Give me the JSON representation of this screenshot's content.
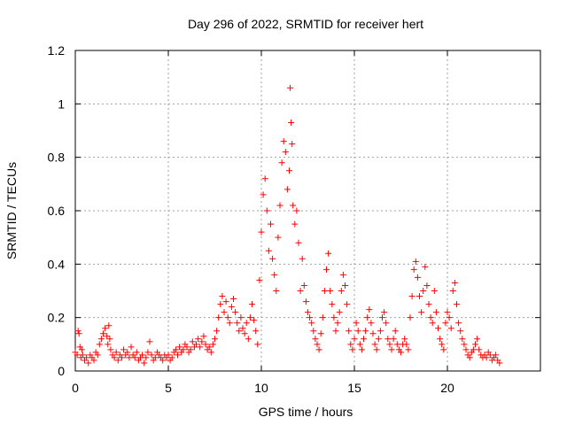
{
  "chart_data": {
    "type": "scatter",
    "title": "Day 296 of 2022, SRMTID for receiver hert",
    "xlabel": "GPS time / hours",
    "ylabel": "SRMTID / TECUs",
    "xlim": [
      0,
      25
    ],
    "ylim": [
      0,
      1.2
    ],
    "xticks": [
      0,
      5,
      10,
      15,
      20
    ],
    "xtick_labels": [
      "0",
      "5",
      "10",
      "15",
      "20"
    ],
    "yticks": [
      0,
      0.2,
      0.4,
      0.6,
      0.8,
      1.0,
      1.2
    ],
    "ytick_labels": [
      "0",
      "0.2",
      "0.4",
      "0.6",
      "0.8",
      "1",
      "1.2"
    ],
    "grid": true,
    "marker": "+",
    "marker_color": "#ff0000",
    "series": [
      {
        "name": "SRMTID",
        "x": [
          0.0,
          0.1,
          0.15,
          0.2,
          0.25,
          0.3,
          0.35,
          0.4,
          0.5,
          0.6,
          0.7,
          0.8,
          0.9,
          1.0,
          1.1,
          1.2,
          1.3,
          1.4,
          1.5,
          1.6,
          1.7,
          1.75,
          1.8,
          1.85,
          1.9,
          2.0,
          2.1,
          2.2,
          2.3,
          2.4,
          2.5,
          2.6,
          2.7,
          2.8,
          2.9,
          3.0,
          3.1,
          3.2,
          3.3,
          3.4,
          3.5,
          3.6,
          3.7,
          3.8,
          3.9,
          4.0,
          4.1,
          4.2,
          4.3,
          4.4,
          4.5,
          4.6,
          4.7,
          4.8,
          4.9,
          5.0,
          5.1,
          5.2,
          5.3,
          5.4,
          5.5,
          5.6,
          5.7,
          5.8,
          5.9,
          6.0,
          6.1,
          6.2,
          6.3,
          6.4,
          6.5,
          6.6,
          6.7,
          6.8,
          6.9,
          7.0,
          7.1,
          7.2,
          7.3,
          7.4,
          7.5,
          7.6,
          7.7,
          7.8,
          7.9,
          8.0,
          8.1,
          8.2,
          8.3,
          8.4,
          8.5,
          8.6,
          8.7,
          8.8,
          8.9,
          9.0,
          9.1,
          9.2,
          9.3,
          9.4,
          9.5,
          9.6,
          9.7,
          9.8,
          9.9,
          10.0,
          10.1,
          10.2,
          10.3,
          10.4,
          10.5,
          10.6,
          10.7,
          10.8,
          10.9,
          11.0,
          11.1,
          11.2,
          11.3,
          11.4,
          11.5,
          11.55,
          11.6,
          11.65,
          11.7,
          11.8,
          11.9,
          12.0,
          12.1,
          12.2,
          12.3,
          12.4,
          12.5,
          12.6,
          12.7,
          12.8,
          12.9,
          13.0,
          13.1,
          13.2,
          13.3,
          13.4,
          13.5,
          13.6,
          13.7,
          13.8,
          13.9,
          14.0,
          14.1,
          14.2,
          14.3,
          14.4,
          14.5,
          14.6,
          14.7,
          14.8,
          14.9,
          15.0,
          15.1,
          15.2,
          15.3,
          15.4,
          15.5,
          15.6,
          15.7,
          15.8,
          15.9,
          16.0,
          16.1,
          16.2,
          16.3,
          16.4,
          16.5,
          16.6,
          16.7,
          16.8,
          16.9,
          17.0,
          17.1,
          17.2,
          17.3,
          17.4,
          17.5,
          17.6,
          17.7,
          17.8,
          17.9,
          18.0,
          18.1,
          18.2,
          18.3,
          18.4,
          18.5,
          18.6,
          18.7,
          18.8,
          18.9,
          19.0,
          19.1,
          19.2,
          19.3,
          19.4,
          19.5,
          19.6,
          19.7,
          19.8,
          19.9,
          20.0,
          20.1,
          20.2,
          20.3,
          20.4,
          20.5,
          20.6,
          20.7,
          20.8,
          20.9,
          21.0,
          21.1,
          21.2,
          21.3,
          21.4,
          21.5,
          21.6,
          21.7,
          21.8,
          21.9,
          22.0,
          22.1,
          22.2,
          22.3,
          22.4,
          22.5,
          22.6,
          22.7,
          22.8
        ],
        "y": [
          0.07,
          0.06,
          0.15,
          0.14,
          0.09,
          0.05,
          0.08,
          0.06,
          0.04,
          0.05,
          0.03,
          0.06,
          0.05,
          0.04,
          0.07,
          0.06,
          0.1,
          0.12,
          0.14,
          0.16,
          0.13,
          0.1,
          0.17,
          0.12,
          0.08,
          0.06,
          0.05,
          0.07,
          0.04,
          0.06,
          0.05,
          0.08,
          0.06,
          0.07,
          0.05,
          0.09,
          0.06,
          0.05,
          0.07,
          0.04,
          0.05,
          0.06,
          0.03,
          0.05,
          0.07,
          0.11,
          0.06,
          0.04,
          0.05,
          0.07,
          0.06,
          0.05,
          0.04,
          0.06,
          0.05,
          0.06,
          0.04,
          0.05,
          0.07,
          0.08,
          0.06,
          0.09,
          0.07,
          0.08,
          0.1,
          0.09,
          0.07,
          0.08,
          0.11,
          0.09,
          0.1,
          0.12,
          0.09,
          0.11,
          0.13,
          0.1,
          0.08,
          0.09,
          0.07,
          0.1,
          0.12,
          0.15,
          0.2,
          0.25,
          0.28,
          0.22,
          0.26,
          0.2,
          0.18,
          0.24,
          0.27,
          0.22,
          0.18,
          0.15,
          0.2,
          0.16,
          0.14,
          0.18,
          0.12,
          0.2,
          0.25,
          0.19,
          0.15,
          0.1,
          0.34,
          0.52,
          0.66,
          0.72,
          0.6,
          0.45,
          0.55,
          0.42,
          0.36,
          0.3,
          0.5,
          0.62,
          0.78,
          0.86,
          0.82,
          0.68,
          0.75,
          1.06,
          0.93,
          0.85,
          0.62,
          0.55,
          0.6,
          0.48,
          0.3,
          0.42,
          0.32,
          0.26,
          0.22,
          0.2,
          0.18,
          0.15,
          0.12,
          0.1,
          0.08,
          0.14,
          0.2,
          0.3,
          0.38,
          0.44,
          0.3,
          0.25,
          0.2,
          0.15,
          0.18,
          0.22,
          0.3,
          0.36,
          0.32,
          0.25,
          0.15,
          0.1,
          0.08,
          0.12,
          0.18,
          0.15,
          0.1,
          0.08,
          0.12,
          0.15,
          0.2,
          0.23,
          0.18,
          0.14,
          0.1,
          0.08,
          0.12,
          0.15,
          0.2,
          0.22,
          0.18,
          0.12,
          0.1,
          0.08,
          0.12,
          0.15,
          0.1,
          0.08,
          0.07,
          0.1,
          0.12,
          0.1,
          0.08,
          0.2,
          0.28,
          0.38,
          0.41,
          0.35,
          0.28,
          0.22,
          0.3,
          0.39,
          0.32,
          0.25,
          0.2,
          0.18,
          0.3,
          0.22,
          0.16,
          0.12,
          0.1,
          0.08,
          0.18,
          0.22,
          0.2,
          0.16,
          0.3,
          0.33,
          0.25,
          0.18,
          0.15,
          0.12,
          0.1,
          0.08,
          0.06,
          0.05,
          0.07,
          0.08,
          0.1,
          0.12,
          0.08,
          0.06,
          0.05,
          0.06,
          0.05,
          0.07,
          0.06,
          0.04,
          0.05,
          0.06,
          0.04,
          0.03
        ]
      }
    ]
  }
}
